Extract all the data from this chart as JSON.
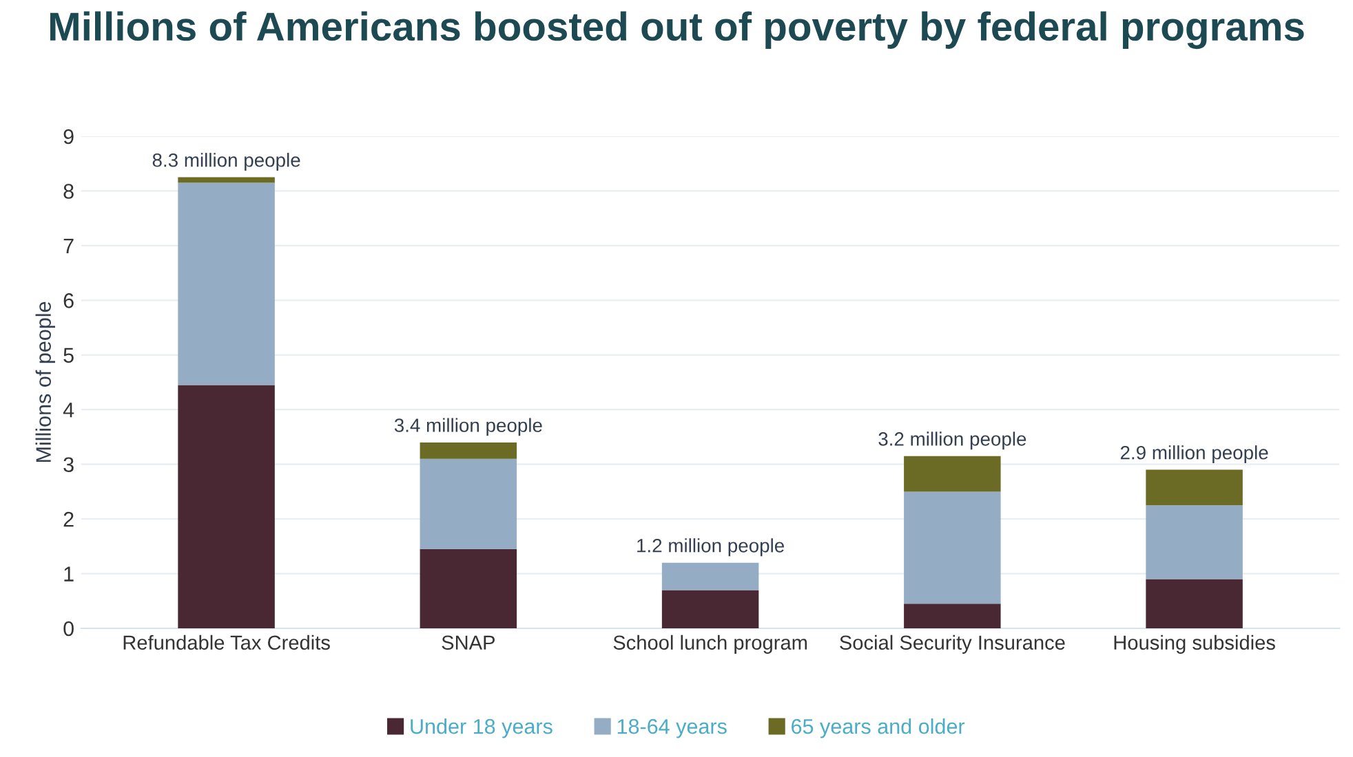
{
  "chart_data": {
    "type": "bar",
    "stacked": true,
    "title": "Millions of Americans boosted out of poverty by federal programs",
    "ylabel": "Millions of people",
    "categories": [
      "Refundable Tax Credits",
      "SNAP",
      "School lunch program",
      "Social Security Insurance",
      "Housing subsidies"
    ],
    "series": [
      {
        "name": "Under 18 years",
        "color": "#4a2833",
        "values": [
          4.45,
          1.45,
          0.7,
          0.45,
          0.9
        ]
      },
      {
        "name": "18-64 years",
        "color": "#94adc4",
        "values": [
          3.7,
          1.65,
          0.5,
          2.05,
          1.35
        ]
      },
      {
        "name": "65 years and older",
        "color": "#6b6b25",
        "values": [
          0.1,
          0.3,
          null,
          0.65,
          0.65
        ]
      }
    ],
    "totals": [
      "8.3 million people",
      "3.4 million people",
      "1.2 million people",
      "3.2 million people",
      "2.9 million people"
    ],
    "ylim": [
      0,
      9
    ],
    "yticks": [
      0,
      1,
      2,
      3,
      4,
      5,
      6,
      7,
      8,
      9
    ],
    "grid": "y",
    "legend": "bottom"
  }
}
